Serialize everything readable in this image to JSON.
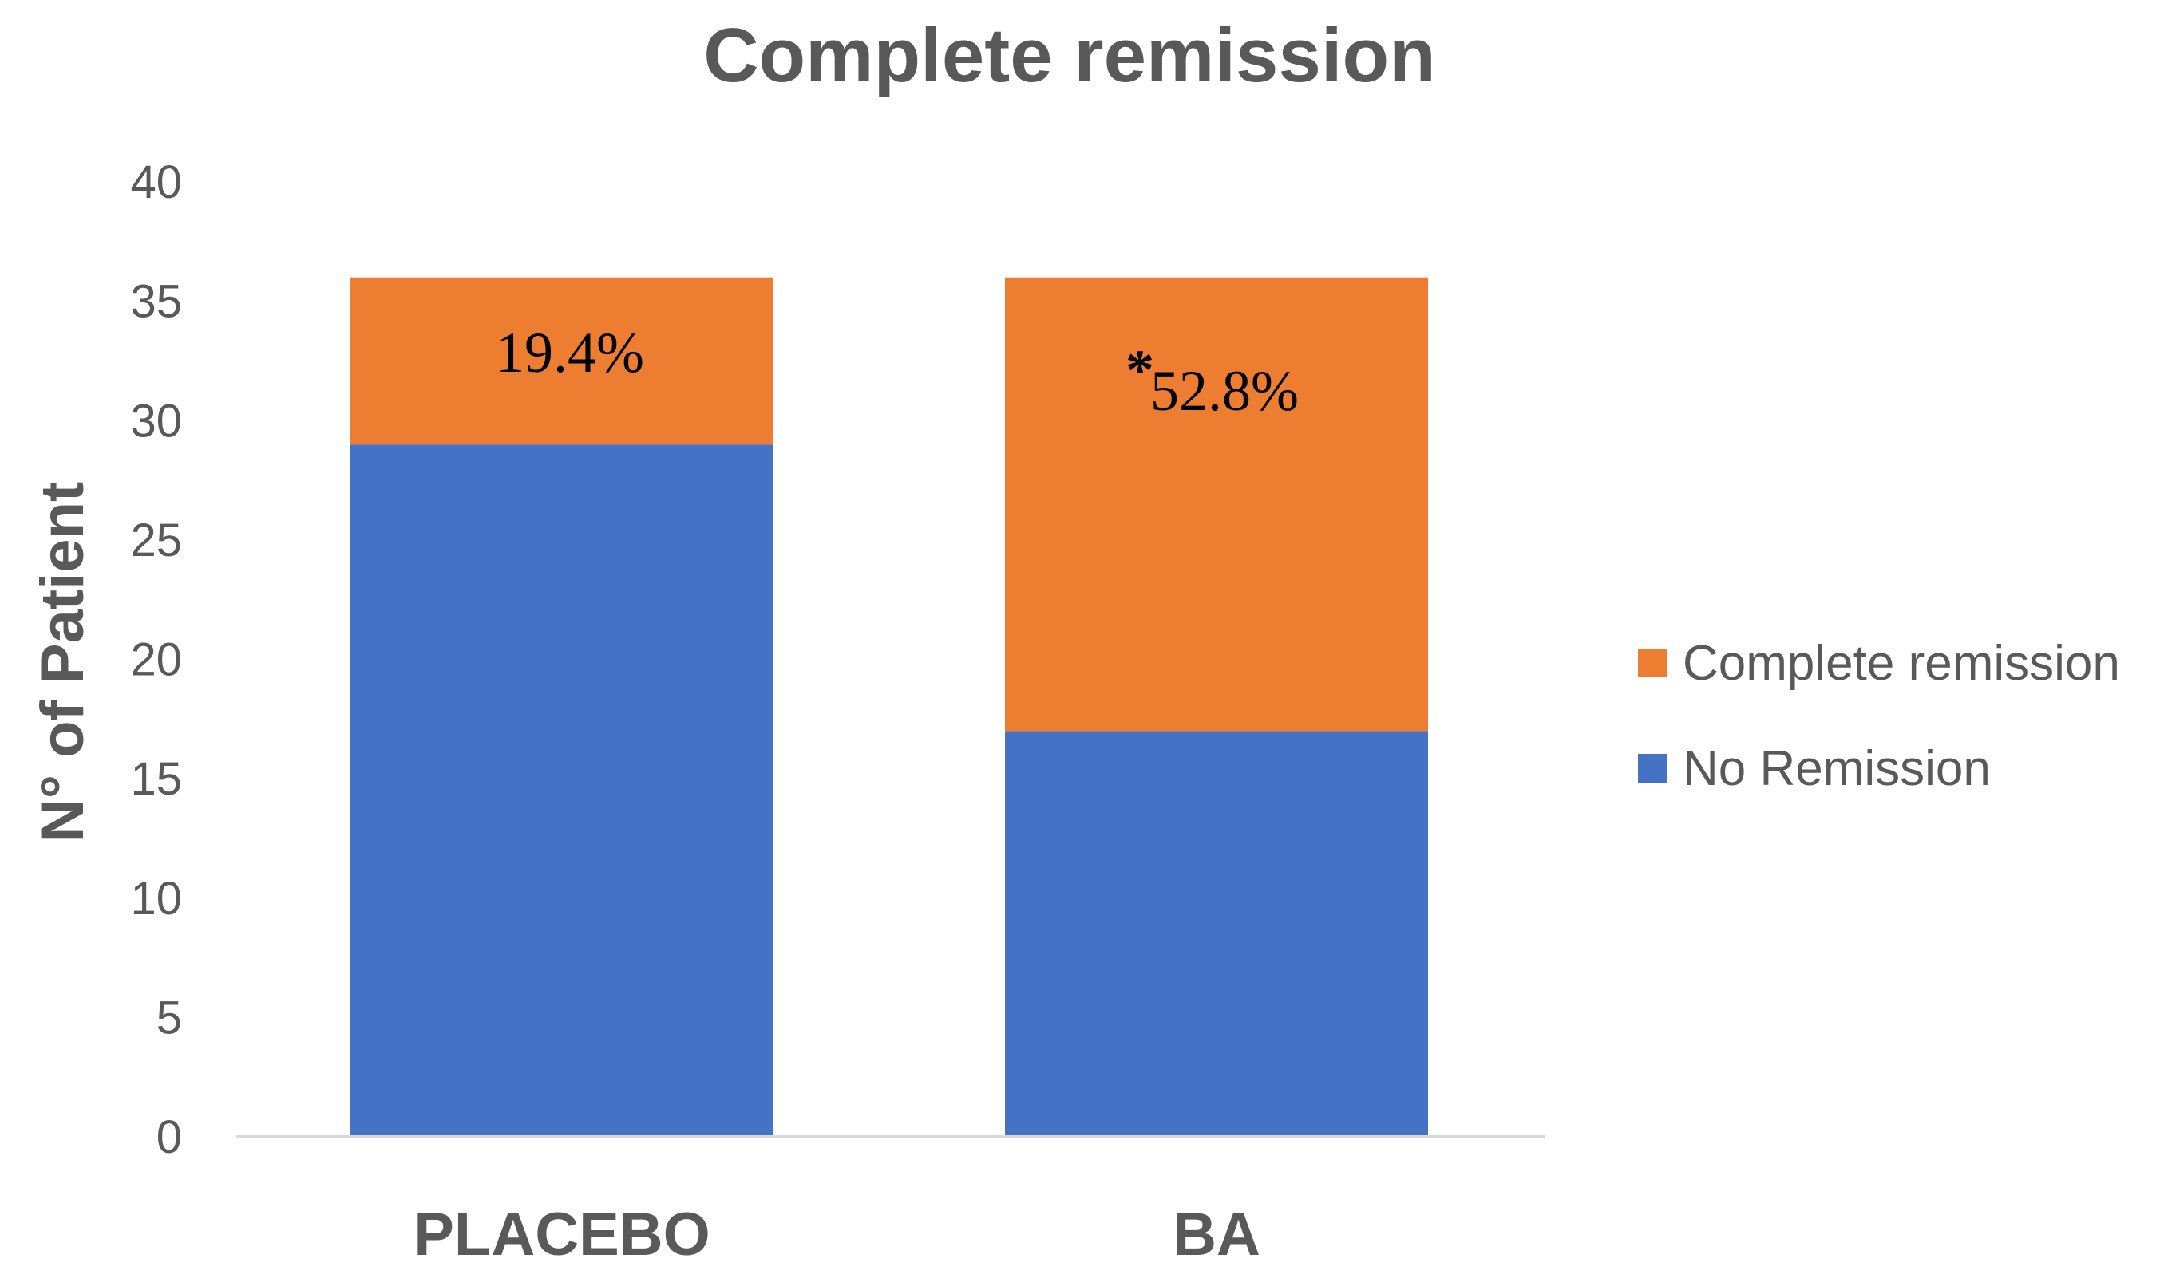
{
  "chart_data": {
    "type": "bar",
    "stacked": true,
    "title": "Complete remission",
    "xlabel": "",
    "ylabel": "N° of Patient",
    "categories": [
      "PLACEBO",
      "BA"
    ],
    "series": [
      {
        "name": "No Remission",
        "values": [
          29,
          17
        ],
        "color": "#4472C4"
      },
      {
        "name": "Complete remission",
        "values": [
          7,
          19
        ],
        "color": "#ED7D31"
      }
    ],
    "ylim": [
      0,
      40
    ],
    "yticks": [
      0,
      5,
      10,
      15,
      20,
      25,
      30,
      35,
      40
    ],
    "grid": false,
    "legend_position": "right",
    "legend_order": [
      "Complete remission",
      "No Remission"
    ],
    "annotations": [
      {
        "category": "PLACEBO",
        "series": "Complete remission",
        "text": "19.4%",
        "marker": ""
      },
      {
        "category": "BA",
        "series": "Complete remission",
        "text": "52.8%",
        "marker": "*"
      }
    ]
  },
  "colors": {
    "text": "#595959",
    "axis": "#D9D9D9",
    "label": "#000000"
  }
}
